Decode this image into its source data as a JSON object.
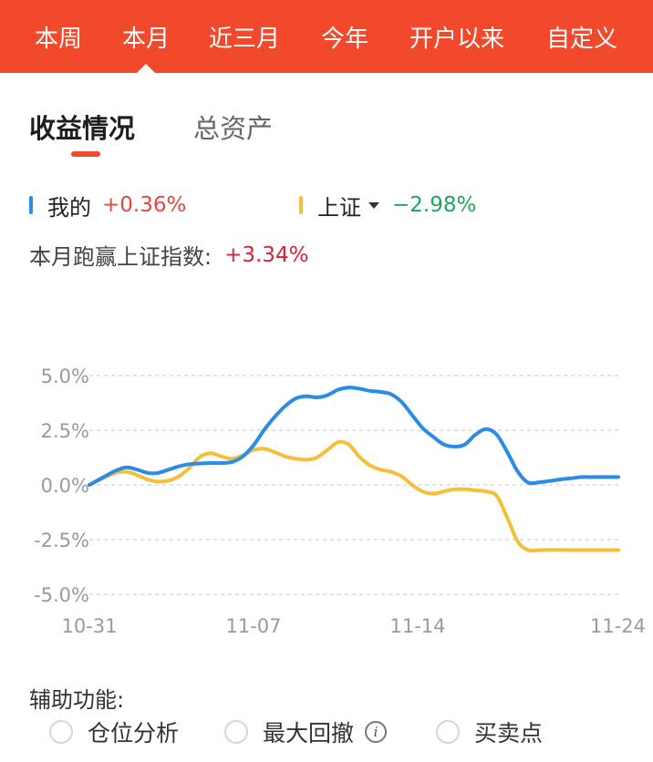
{
  "period_tabs": [
    {
      "label": "本周",
      "active": false
    },
    {
      "label": "本月",
      "active": true
    },
    {
      "label": "近三月",
      "active": false
    },
    {
      "label": "今年",
      "active": false
    },
    {
      "label": "开户以来",
      "active": false
    },
    {
      "label": "自定义",
      "active": false
    }
  ],
  "sub_tabs": [
    {
      "label": "收益情况",
      "active": true
    },
    {
      "label": "总资产",
      "active": false
    }
  ],
  "legend": {
    "mine": {
      "name": "我的",
      "value": "+0.36%",
      "color": "#2b8be6",
      "value_color": "#e0483c"
    },
    "index": {
      "name": "上证",
      "value": "−2.98%",
      "color": "#f4bf39",
      "value_color": "#1fa55c"
    }
  },
  "beat": {
    "label": "本月跑赢上证指数:",
    "value": "+3.34%"
  },
  "chart_data": {
    "type": "line",
    "y_ticks": [
      "5.0%",
      "2.5%",
      "0.0%",
      "-2.5%",
      "-5.0%"
    ],
    "x_ticks": [
      "10-31",
      "11-07",
      "11-14",
      "11-24"
    ],
    "ylim": [
      -5.0,
      5.0
    ],
    "grid": true,
    "series": [
      {
        "name": "我的",
        "color": "#2b8be6",
        "x": [
          0,
          0.03,
          0.05,
          0.07,
          0.09,
          0.11,
          0.13,
          0.15,
          0.17,
          0.19,
          0.21,
          0.23,
          0.25,
          0.27,
          0.29,
          0.31,
          0.33,
          0.35,
          0.37,
          0.39,
          0.41,
          0.43,
          0.45,
          0.47,
          0.49,
          0.51,
          0.53,
          0.55,
          0.57,
          0.59,
          0.61,
          0.63,
          0.65,
          0.67,
          0.69,
          0.71,
          0.73,
          0.75,
          0.77,
          0.79,
          0.81,
          0.83,
          0.85,
          0.87,
          0.89,
          0.91,
          0.93,
          0.95,
          0.97,
          1.0
        ],
        "y": [
          0,
          0.4,
          0.65,
          0.8,
          0.7,
          0.55,
          0.55,
          0.7,
          0.85,
          0.95,
          0.98,
          1.0,
          1.0,
          1.05,
          1.3,
          1.8,
          2.5,
          3.1,
          3.6,
          3.95,
          4.05,
          4.0,
          4.1,
          4.35,
          4.45,
          4.4,
          4.3,
          4.25,
          4.15,
          3.8,
          3.2,
          2.6,
          2.2,
          1.85,
          1.75,
          1.85,
          2.3,
          2.55,
          2.3,
          1.5,
          0.6,
          0.1,
          0.12,
          0.18,
          0.25,
          0.3,
          0.36,
          0.36,
          0.36,
          0.36
        ]
      },
      {
        "name": "上证",
        "color": "#f4bf39",
        "x": [
          0,
          0.03,
          0.05,
          0.07,
          0.09,
          0.11,
          0.13,
          0.15,
          0.17,
          0.19,
          0.21,
          0.23,
          0.25,
          0.27,
          0.29,
          0.31,
          0.33,
          0.35,
          0.37,
          0.39,
          0.41,
          0.43,
          0.45,
          0.47,
          0.49,
          0.51,
          0.53,
          0.55,
          0.57,
          0.59,
          0.61,
          0.63,
          0.65,
          0.67,
          0.69,
          0.71,
          0.73,
          0.75,
          0.77,
          0.79,
          0.81,
          0.83,
          0.85,
          0.87,
          0.89,
          0.91,
          0.93,
          0.95,
          0.97,
          1.0
        ],
        "y": [
          0,
          0.35,
          0.55,
          0.6,
          0.45,
          0.25,
          0.15,
          0.2,
          0.4,
          0.8,
          1.3,
          1.45,
          1.3,
          1.2,
          1.35,
          1.6,
          1.65,
          1.5,
          1.3,
          1.2,
          1.15,
          1.25,
          1.6,
          1.95,
          1.85,
          1.3,
          0.9,
          0.7,
          0.6,
          0.4,
          0.0,
          -0.3,
          -0.4,
          -0.3,
          -0.2,
          -0.2,
          -0.25,
          -0.3,
          -0.5,
          -1.5,
          -2.6,
          -2.98,
          -2.98,
          -2.97,
          -2.97,
          -2.98,
          -2.98,
          -2.98,
          -2.98,
          -2.98
        ]
      }
    ]
  },
  "aux": {
    "title": "辅助功能:",
    "options": [
      "仓位分析",
      "最大回撤",
      "买卖点"
    ],
    "info_icon": "i"
  }
}
